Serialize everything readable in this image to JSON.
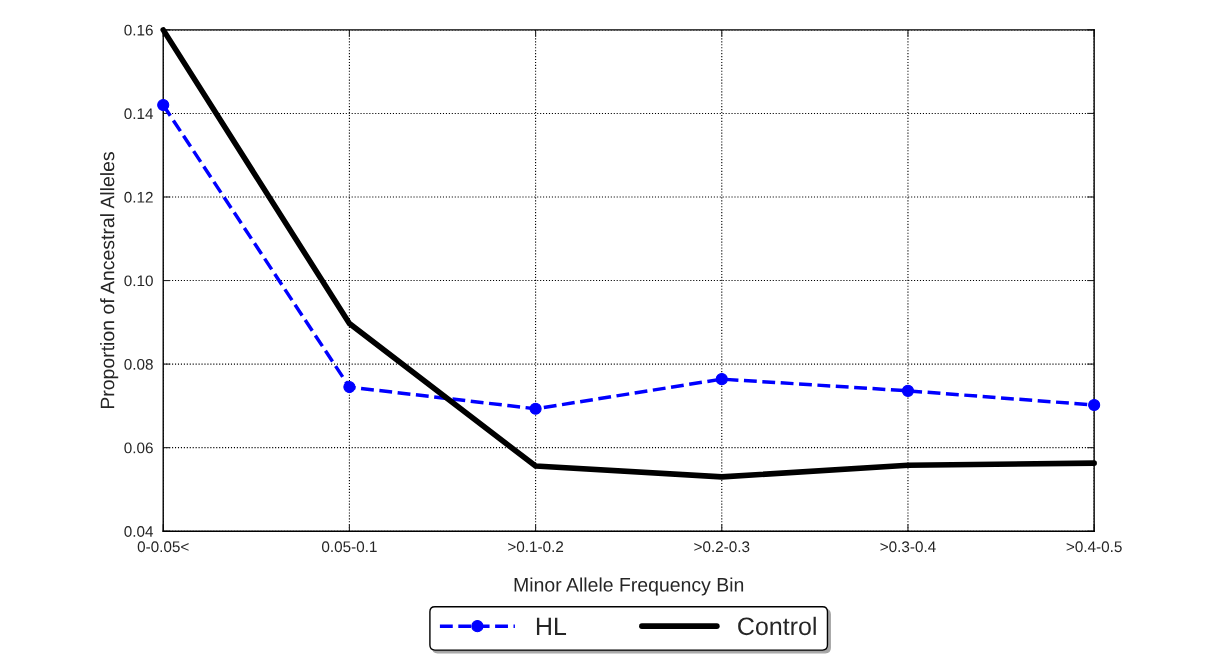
{
  "chart_data": {
    "type": "line",
    "xlabel": "Minor Allele Frequency Bin",
    "ylabel": "Proportion of Ancestral Alleles",
    "categories": [
      "0-0.05<",
      "0.05-0.1",
      ">0.1-0.2",
      ">0.2-0.3",
      ">0.3-0.4",
      ">0.4-0.5"
    ],
    "series": [
      {
        "name": "HL",
        "color": "#0000ff",
        "marker": "circle",
        "line_style": "dashed",
        "values": [
          0.142,
          0.0745,
          0.0693,
          0.0764,
          0.0736,
          0.0702
        ]
      },
      {
        "name": "Control",
        "color": "#000000",
        "marker": "none",
        "line_style": "solid",
        "values": [
          0.16,
          0.0897,
          0.0556,
          0.053,
          0.0558,
          0.0563
        ]
      }
    ],
    "ylim": [
      0.04,
      0.16
    ],
    "yticks": [
      {
        "value": 0.04,
        "label": "0.04"
      },
      {
        "value": 0.06,
        "label": "0.06"
      },
      {
        "value": 0.08,
        "label": "0.08"
      },
      {
        "value": 0.1,
        "label": "0.10"
      },
      {
        "value": 0.12,
        "label": "0.12"
      },
      {
        "value": 0.14,
        "label": "0.14"
      },
      {
        "value": 0.16,
        "label": "0.16"
      }
    ],
    "grid": true,
    "legend": "bottom"
  }
}
